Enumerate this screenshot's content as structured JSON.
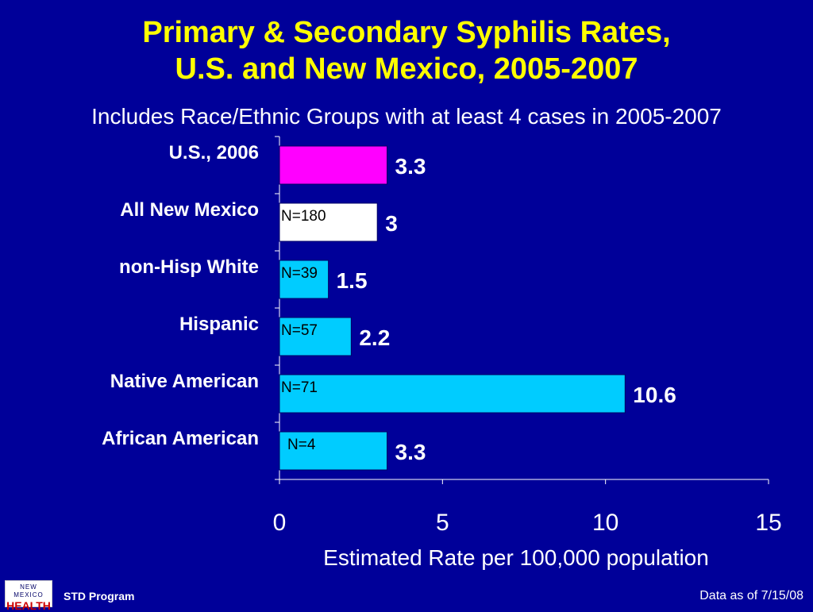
{
  "title_line1": "Primary & Secondary Syphilis Rates,",
  "title_line2": "U.S. and New Mexico, 2005-2007",
  "subtitle": "Includes Race/Ethnic Groups with at least 4 cases in 2005-2007",
  "footer": {
    "logo_top": "NEW MEXICO",
    "logo_main": "HEALTH",
    "program": "STD Program",
    "data_as_of": "Data as of 7/15/08"
  },
  "colors": {
    "background": "#000099",
    "title": "#ffff00",
    "us_bar": "#ff00ff",
    "nm_bar": "#ffffff",
    "group_bar": "#00ccff"
  },
  "chart_data": {
    "type": "bar",
    "orientation": "horizontal",
    "categories": [
      "U.S., 2006",
      "All New Mexico",
      "non-Hisp White",
      "Hispanic",
      "Native American",
      "African American"
    ],
    "values": [
      3.3,
      3,
      1.5,
      2.2,
      10.6,
      3.3
    ],
    "value_labels": [
      "3.3",
      "3",
      "1.5",
      "2.2",
      "10.6",
      "3.3"
    ],
    "n_labels": [
      "",
      "N=180",
      "N=39",
      "N=57",
      "N=71",
      "N=4"
    ],
    "bar_colors": [
      "#ff00ff",
      "#ffffff",
      "#00ccff",
      "#00ccff",
      "#00ccff",
      "#00ccff"
    ],
    "xlabel": "Estimated Rate per 100,000 population",
    "xlim": [
      0,
      15
    ],
    "xticks": [
      0,
      5,
      10,
      15
    ],
    "grid": false
  }
}
